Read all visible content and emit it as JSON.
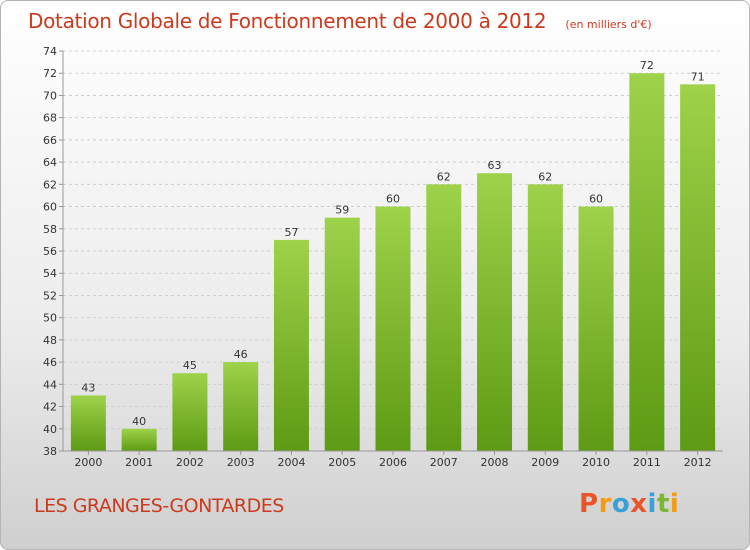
{
  "header": {
    "title": "Dotation Globale de Fonctionnement de 2000 à 2012",
    "unit": "(en milliers d'€)"
  },
  "footer": {
    "commune": "LES GRANGES-GONTARDES",
    "brand_letters": [
      "P",
      "r",
      "o",
      "x",
      "i",
      "t",
      "i"
    ],
    "brand_colors": [
      "#e8552a",
      "#f39c12",
      "#3aa0d8",
      "#e8552a",
      "#3aa0d8",
      "#7cb733",
      "#f39c12"
    ]
  },
  "chart_data": {
    "type": "bar",
    "categories": [
      "2000",
      "2001",
      "2002",
      "2003",
      "2004",
      "2005",
      "2006",
      "2007",
      "2008",
      "2009",
      "2010",
      "2011",
      "2012"
    ],
    "values": [
      43,
      40,
      45,
      46,
      57,
      59,
      60,
      62,
      63,
      62,
      60,
      72,
      71
    ],
    "data_labels": [
      "43",
      "40",
      "45",
      "46",
      "57",
      "59",
      "60",
      "62",
      "63",
      "62",
      "60",
      "72",
      "71"
    ],
    "ylim": [
      38,
      74
    ],
    "yticks": [
      38,
      40,
      42,
      44,
      46,
      48,
      50,
      52,
      54,
      56,
      58,
      60,
      62,
      64,
      66,
      68,
      70,
      72,
      74
    ],
    "grid": "horizontal dashed",
    "bar_color_top": "#9ed24a",
    "bar_color_bottom": "#5e9a14",
    "title": "Dotation Globale de Fonctionnement de 2000 à 2012",
    "xlabel": "",
    "ylabel": ""
  }
}
